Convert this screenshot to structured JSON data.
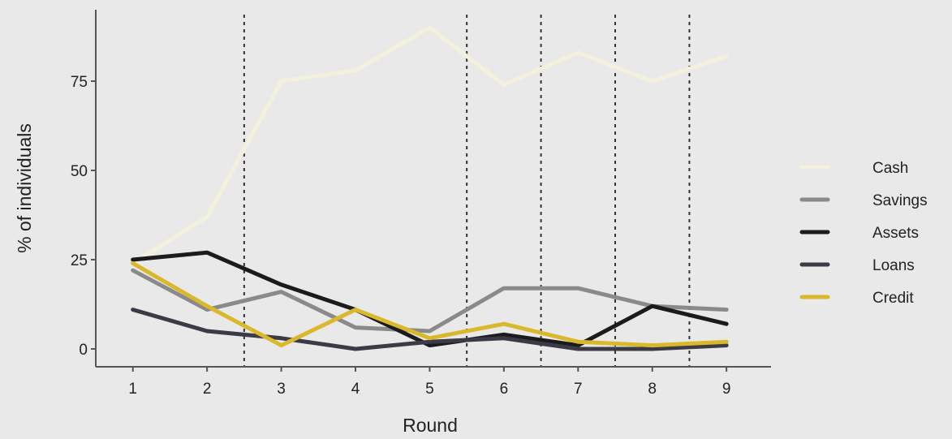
{
  "chart_data": {
    "type": "line",
    "xlabel": "Round",
    "ylabel": "% of individuals",
    "x": [
      1,
      2,
      3,
      4,
      5,
      6,
      7,
      8,
      9
    ],
    "xlim": [
      0.5,
      9.6
    ],
    "ylim": [
      -5,
      95
    ],
    "y_ticks": [
      0,
      25,
      50,
      75
    ],
    "x_ticks": [
      1,
      2,
      3,
      4,
      5,
      6,
      7,
      8,
      9
    ],
    "vlines": [
      2.5,
      5.5,
      6.5,
      7.5,
      8.5
    ],
    "legend_position": "right",
    "series": [
      {
        "name": "Cash",
        "color": "#f3f0dc",
        "values": [
          24,
          37,
          75,
          78,
          90,
          74,
          83,
          75,
          82
        ]
      },
      {
        "name": "Savings",
        "color": "#8a8a8a",
        "values": [
          22,
          11,
          16,
          6,
          5,
          17,
          17,
          12,
          11
        ]
      },
      {
        "name": "Assets",
        "color": "#1b1b1b",
        "values": [
          25,
          27,
          18,
          11,
          1,
          4,
          1,
          12,
          7
        ]
      },
      {
        "name": "Loans",
        "color": "#3d3a47",
        "values": [
          11,
          5,
          3,
          0,
          2,
          3,
          0,
          0,
          1
        ]
      },
      {
        "name": "Credit",
        "color": "#d9b92b",
        "values": [
          24,
          12,
          1,
          11,
          3,
          7,
          2,
          1,
          2
        ]
      }
    ]
  }
}
